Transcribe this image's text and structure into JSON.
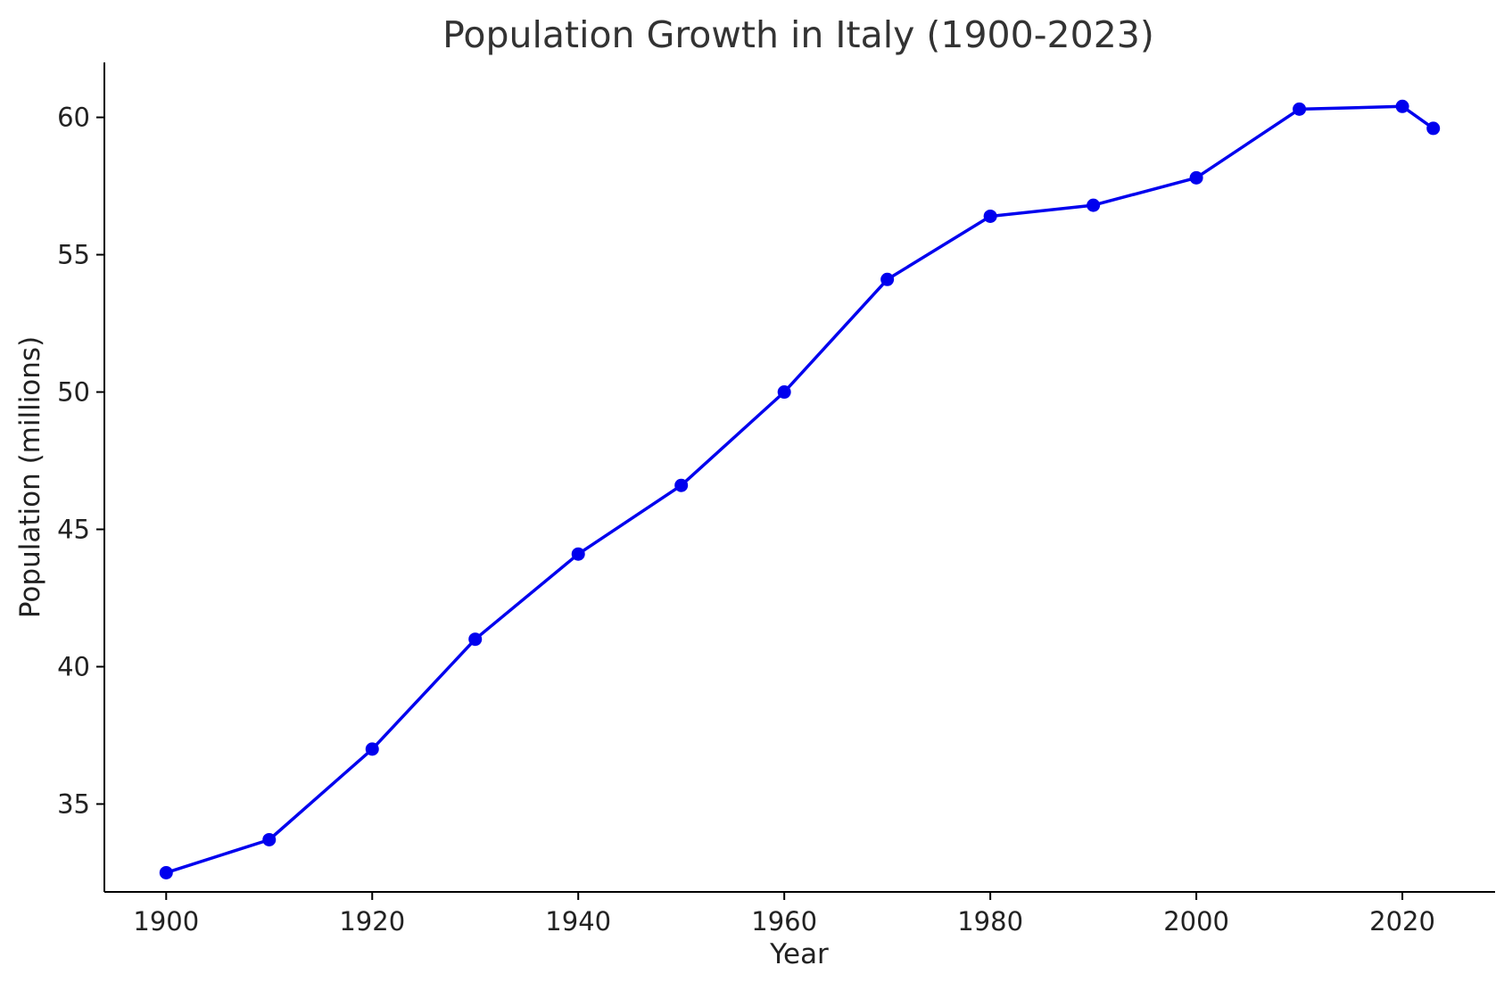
{
  "chart_data": {
    "type": "line",
    "title": "Population Growth in Italy (1900-2023)",
    "xlabel": "Year",
    "ylabel": "Population (millions)",
    "xlim": [
      1894,
      2029
    ],
    "ylim": [
      31.8,
      62.0
    ],
    "x_ticks": [
      1900,
      1920,
      1940,
      1960,
      1980,
      2000,
      2020
    ],
    "y_ticks": [
      35,
      40,
      45,
      50,
      55,
      60
    ],
    "grid": false,
    "legend": "none",
    "series": [
      {
        "color": "#0000ee",
        "marker": "circle",
        "x": [
          1900,
          1910,
          1920,
          1930,
          1940,
          1950,
          1960,
          1970,
          1980,
          1990,
          2000,
          2010,
          2020,
          2023
        ],
        "y": [
          32.5,
          33.7,
          37.0,
          41.0,
          44.1,
          46.6,
          50.0,
          54.1,
          56.4,
          56.8,
          57.8,
          60.3,
          60.4,
          59.6
        ]
      }
    ]
  }
}
